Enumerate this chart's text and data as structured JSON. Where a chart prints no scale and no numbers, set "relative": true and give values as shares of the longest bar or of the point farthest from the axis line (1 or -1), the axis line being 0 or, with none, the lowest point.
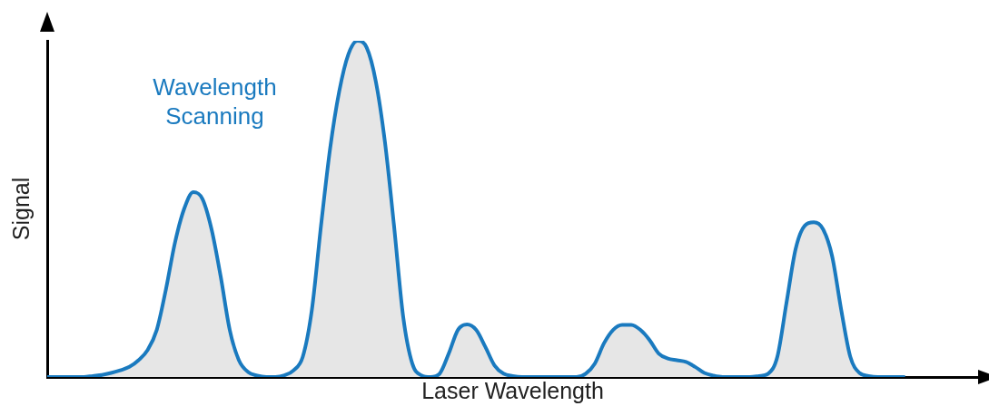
{
  "chart_data": {
    "type": "area",
    "relative": true,
    "xlabel": "Laser Wavelength",
    "ylabel": "Signal",
    "annotations": [
      "Wavelength Scanning"
    ],
    "grid": false,
    "legend": false,
    "tick_labels": false,
    "categories": [
      null,
      null,
      null,
      null,
      null,
      null,
      null,
      null,
      null,
      null,
      null,
      null,
      null,
      null,
      null,
      null,
      null,
      null,
      null,
      null,
      null,
      null,
      null,
      null,
      null,
      null,
      null,
      null,
      null,
      null,
      null,
      null,
      null,
      null,
      null,
      null,
      null,
      null,
      null,
      null,
      null,
      null,
      null,
      null,
      null,
      null,
      null,
      null,
      null,
      null,
      null,
      null,
      null,
      null,
      null,
      null,
      null,
      null,
      null,
      null,
      null,
      null,
      null,
      null,
      null,
      null,
      null,
      null,
      null,
      null,
      null,
      null,
      null,
      null,
      null,
      null,
      null,
      null,
      null,
      null,
      null,
      null,
      null,
      null,
      null,
      null,
      null,
      null,
      null,
      null,
      null,
      null,
      null,
      null,
      null,
      null,
      null,
      null,
      null,
      null,
      null,
      null,
      null
    ],
    "series": [
      {
        "color": "#1a7abf",
        "values": [
          0,
          0,
          0,
          0,
          0,
          0.003,
          0.006,
          0.012,
          0.02,
          0.03,
          0.05,
          0.08,
          0.14,
          0.26,
          0.4,
          0.5,
          0.55,
          0.53,
          0.44,
          0.3,
          0.14,
          0.05,
          0.015,
          0.004,
          0,
          0,
          0.005,
          0.02,
          0.06,
          0.2,
          0.45,
          0.68,
          0.85,
          0.96,
          1,
          0.98,
          0.88,
          0.7,
          0.45,
          0.18,
          0.04,
          0.005,
          0,
          0.01,
          0.07,
          0.14,
          0.156,
          0.14,
          0.09,
          0.035,
          0.01,
          0.003,
          0,
          0,
          0,
          0,
          0,
          0,
          0,
          0.01,
          0.04,
          0.1,
          0.14,
          0.155,
          0.155,
          0.14,
          0.11,
          0.07,
          0.055,
          0.05,
          0.045,
          0.03,
          0.012,
          0.004,
          0,
          0,
          0,
          0,
          0.003,
          0.01,
          0.06,
          0.22,
          0.38,
          0.45,
          0.46,
          0.44,
          0.36,
          0.2,
          0.06,
          0.012,
          0.003,
          0,
          0,
          0,
          0,
          null,
          null,
          null,
          null,
          null,
          null,
          null,
          null
        ]
      }
    ]
  }
}
